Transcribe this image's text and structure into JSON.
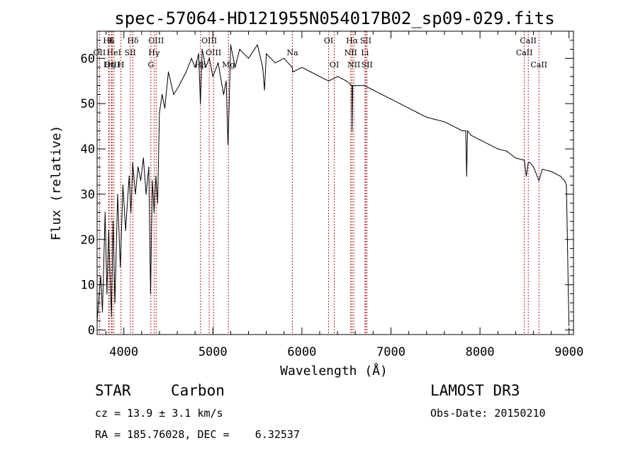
{
  "chart_data": {
    "type": "line",
    "title": "spec-57064-HD121955N054017B02_sp09-029.fits",
    "xlabel": "Wavelength (Å)",
    "ylabel": "Flux (relative)",
    "xlim": [
      3700,
      9050
    ],
    "ylim": [
      -1,
      66
    ],
    "x_ticks": [
      4000,
      5000,
      6000,
      7000,
      8000,
      9000
    ],
    "y_ticks": [
      0,
      10,
      20,
      30,
      40,
      50,
      60
    ],
    "series": [
      {
        "name": "spectrum",
        "x": [
          3700,
          3740,
          3760,
          3790,
          3810,
          3830,
          3860,
          3880,
          3900,
          3930,
          3960,
          3990,
          4020,
          4060,
          4080,
          4100,
          4130,
          4160,
          4190,
          4220,
          4250,
          4280,
          4300,
          4320,
          4340,
          4360,
          4380,
          4400,
          4430,
          4460,
          4500,
          4560,
          4620,
          4700,
          4760,
          4800,
          4840,
          4860,
          4880,
          4920,
          4960,
          5000,
          5060,
          5120,
          5150,
          5170,
          5183,
          5200,
          5250,
          5300,
          5400,
          5500,
          5560,
          5580,
          5600,
          5700,
          5800,
          5890,
          5900,
          6000,
          6100,
          6200,
          6300,
          6400,
          6500,
          6560,
          6563,
          6570,
          6600,
          6700,
          6800,
          6900,
          7000,
          7100,
          7200,
          7300,
          7400,
          7500,
          7600,
          7700,
          7800,
          7840,
          7850,
          7860,
          7900,
          8000,
          8100,
          8200,
          8300,
          8400,
          8498,
          8520,
          8542,
          8560,
          8600,
          8662,
          8700,
          8800,
          8900,
          8950,
          8970,
          8980,
          8990,
          9000
        ],
        "y": [
          2,
          12,
          4,
          26,
          8,
          22,
          3,
          24,
          6,
          30,
          14,
          32,
          22,
          34,
          26,
          37,
          30,
          36,
          33,
          38,
          30,
          36,
          8,
          33,
          26,
          34,
          28,
          48,
          52,
          49,
          57,
          52,
          54,
          57,
          60,
          58,
          61,
          50,
          62,
          58,
          60,
          56,
          59,
          52,
          55,
          41,
          50,
          63,
          58,
          62,
          60,
          63,
          58,
          53,
          61,
          59,
          60,
          58,
          57,
          58,
          57,
          56,
          55,
          56,
          55,
          54,
          44,
          54,
          54,
          54,
          53,
          52,
          51,
          50,
          49,
          48,
          47,
          46.5,
          46,
          45,
          44,
          44,
          34,
          44,
          43,
          42,
          41,
          40,
          39.5,
          38,
          37.5,
          34,
          37,
          37,
          36,
          33,
          35.5,
          35,
          34,
          33,
          32,
          22,
          10,
          1
        ]
      }
    ],
    "line_markers": [
      {
        "label": "Hδ",
        "x": 3830,
        "row": 0
      },
      {
        "label": "K",
        "x": 3860,
        "row": 0
      },
      {
        "label": "Hδ",
        "x": 4102,
        "row": 0
      },
      {
        "label": "OII",
        "x": 3727,
        "row": 1
      },
      {
        "label": "HeI",
        "x": 3889,
        "row": 1
      },
      {
        "label": "SII",
        "x": 4072,
        "row": 1
      },
      {
        "label": "OIII",
        "x": 3869,
        "row": 2
      },
      {
        "label": "Hη",
        "x": 3835,
        "row": 2
      },
      {
        "label": "H",
        "x": 3968,
        "row": 2
      },
      {
        "label": "OIII",
        "x": 4363,
        "row": 0
      },
      {
        "label": "Hγ",
        "x": 4340,
        "row": 1
      },
      {
        "label": "G",
        "x": 4304,
        "row": 2
      },
      {
        "label": "OIII",
        "x": 4959,
        "row": 0
      },
      {
        "label": "OIII",
        "x": 5007,
        "row": 1
      },
      {
        "label": "Hβ",
        "x": 4861,
        "row": 2
      },
      {
        "label": "Mg",
        "x": 5175,
        "row": 2
      },
      {
        "label": "Na",
        "x": 5893,
        "row": 1
      },
      {
        "label": "OI",
        "x": 6300,
        "row": 0
      },
      {
        "label": "OI",
        "x": 6364,
        "row": 2
      },
      {
        "label": "Hα",
        "x": 6563,
        "row": 0
      },
      {
        "label": "SII",
        "x": 6716,
        "row": 0
      },
      {
        "label": "NII",
        "x": 6548,
        "row": 1
      },
      {
        "label": "Li",
        "x": 6708,
        "row": 1
      },
      {
        "label": "NII",
        "x": 6583,
        "row": 2
      },
      {
        "label": "SII",
        "x": 6731,
        "row": 2
      },
      {
        "label": "CaII",
        "x": 8542,
        "row": 0
      },
      {
        "label": "CaII",
        "x": 8498,
        "row": 1
      },
      {
        "label": "CaII",
        "x": 8662,
        "row": 2
      }
    ]
  },
  "info": {
    "object_class": "STAR",
    "subclass": "Carbon",
    "survey": "LAMOST DR3",
    "redshift": "cz = 13.9 ± 3.1 km/s",
    "obs_date": "Obs-Date: 20150210",
    "coords": "RA = 185.76028, DEC =    6.32537"
  }
}
